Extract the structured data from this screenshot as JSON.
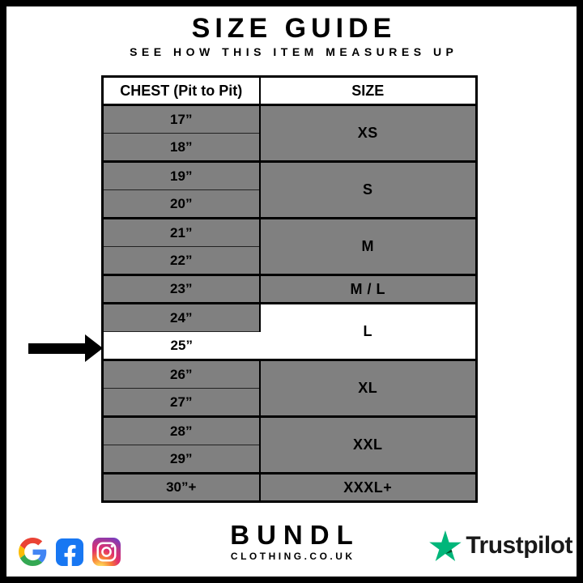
{
  "header": {
    "title": "SIZE GUIDE",
    "subtitle": "SEE HOW THIS ITEM MEASURES UP"
  },
  "table": {
    "headers": [
      "CHEST (Pit to Pit)",
      "SIZE"
    ],
    "rows": [
      {
        "chest": "17”",
        "size": "XS",
        "rowspan": 2
      },
      {
        "chest": "18”",
        "group_end": true
      },
      {
        "chest": "19”",
        "size": "S",
        "rowspan": 2
      },
      {
        "chest": "20”",
        "group_end": true
      },
      {
        "chest": "21”",
        "size": "M",
        "rowspan": 2
      },
      {
        "chest": "22”",
        "group_end": true
      },
      {
        "chest": "23”",
        "size": "M / L",
        "rowspan": 1,
        "group_end": true
      },
      {
        "chest": "24”",
        "size": "L",
        "rowspan": 2,
        "size_hl": true
      },
      {
        "chest": "25”",
        "hl": true,
        "group_end": true
      },
      {
        "chest": "26”",
        "size": "XL",
        "rowspan": 2
      },
      {
        "chest": "27”",
        "group_end": true
      },
      {
        "chest": "28”",
        "size": "XXL",
        "rowspan": 2
      },
      {
        "chest": "29”",
        "group_end": true
      },
      {
        "chest": "30”+",
        "size": "XXXL+",
        "rowspan": 1
      }
    ],
    "highlight": {
      "chest": "25”",
      "size": "L"
    }
  },
  "chart_data": {
    "type": "table",
    "title": "SIZE GUIDE",
    "subtitle": "SEE HOW THIS ITEM MEASURES UP",
    "columns": [
      "CHEST (Pit to Pit)",
      "SIZE"
    ],
    "rows": [
      [
        "17”",
        "XS"
      ],
      [
        "18”",
        "XS"
      ],
      [
        "19”",
        "S"
      ],
      [
        "20”",
        "S"
      ],
      [
        "21”",
        "M"
      ],
      [
        "22”",
        "M"
      ],
      [
        "23”",
        "M / L"
      ],
      [
        "24”",
        "L"
      ],
      [
        "25”",
        "L"
      ],
      [
        "26”",
        "XL"
      ],
      [
        "27”",
        "XL"
      ],
      [
        "28”",
        "XXL"
      ],
      [
        "29”",
        "XXL"
      ],
      [
        "30”+",
        "XXXL+"
      ]
    ],
    "highlighted_row": [
      "25”",
      "L"
    ]
  },
  "footer": {
    "brand": "BUNDL",
    "brand_tagline": "CLOTHING.CO.UK",
    "trustpilot_label": "Trustpilot",
    "social_icons": [
      "google-icon",
      "facebook-icon",
      "instagram-icon"
    ]
  },
  "colors": {
    "cell_gray": "#808080",
    "highlight_white": "#ffffff",
    "border_black": "#000000",
    "facebook_blue": "#1877F2",
    "trustpilot_green": "#00B67A",
    "trustpilot_green_dark": "#005128",
    "google_blue": "#4285F4",
    "google_red": "#EA4335",
    "google_yellow": "#FBBC05",
    "google_green": "#34A853"
  }
}
